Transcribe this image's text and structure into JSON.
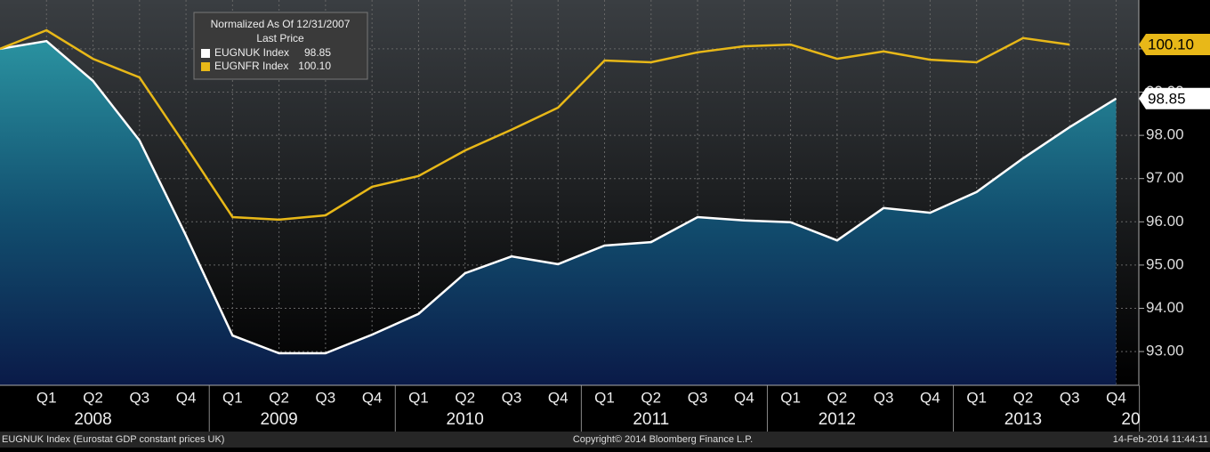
{
  "chart_data": {
    "type": "line",
    "legend_title": "Normalized As Of 12/31/2007",
    "legend_subtitle": "Last Price",
    "categories": [
      null,
      "Q1",
      "Q2",
      "Q3",
      "Q4",
      "Q1",
      "Q2",
      "Q3",
      "Q4",
      "Q1",
      "Q2",
      "Q3",
      "Q4",
      "Q1",
      "Q2",
      "Q3",
      "Q4",
      "Q1",
      "Q2",
      "Q3",
      "Q4",
      "Q1",
      "Q2",
      "Q3",
      "Q4"
    ],
    "years": [
      "2008",
      "2009",
      "2010",
      "2011",
      "2012",
      "2013",
      "20"
    ],
    "series": [
      {
        "name": "EUGNUK Index",
        "color": "#ffffff",
        "last_value_label": "98.85",
        "values": [
          100,
          100.18,
          99.26,
          97.88,
          95.68,
          93.37,
          92.96,
          92.96,
          93.39,
          93.87,
          94.81,
          95.2,
          95.02,
          95.45,
          95.53,
          96.11,
          96.03,
          95.99,
          95.57,
          96.32,
          96.21,
          96.69,
          97.47,
          98.19,
          98.85
        ]
      },
      {
        "name": "EUGNFR Index",
        "color": "#e8b818",
        "last_value_label": "100.10",
        "values": [
          100,
          100.43,
          99.77,
          99.34,
          97.74,
          96.11,
          96.05,
          96.15,
          96.81,
          97.06,
          97.65,
          98.13,
          98.64,
          99.73,
          99.69,
          99.92,
          100.06,
          100.1,
          99.77,
          99.94,
          99.75,
          99.69,
          100.25,
          100.1,
          null
        ]
      }
    ],
    "ylim": [
      92.22,
      101.13
    ],
    "yticks": [
      {
        "value": 93,
        "label": "93.00"
      },
      {
        "value": 94,
        "label": "94.00"
      },
      {
        "value": 95,
        "label": "95.00"
      },
      {
        "value": 96,
        "label": "96.00"
      },
      {
        "value": 97,
        "label": "97.00"
      },
      {
        "value": 98,
        "label": "98.00"
      },
      {
        "value": 99,
        "label": "99.00"
      },
      {
        "value": 100,
        "label": "100.00"
      }
    ],
    "grid": true,
    "footer_left": "EUGNUK Index (Eurostat GDP constant prices UK)",
    "footer_center": "Copyright© 2014 Bloomberg Finance L.P.",
    "footer_right": "14-Feb-2014 11:44:11"
  }
}
